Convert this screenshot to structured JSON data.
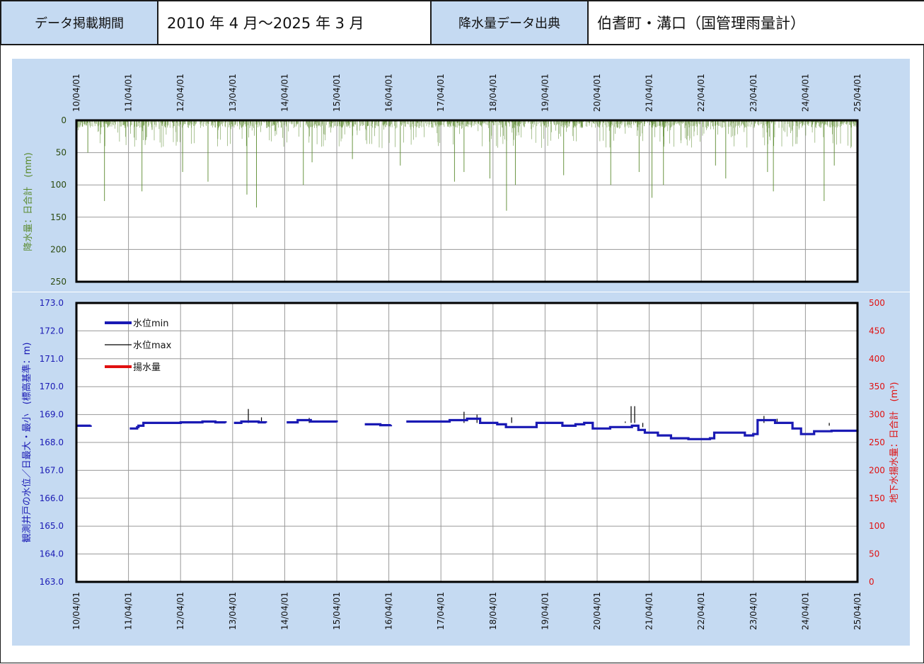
{
  "header": {
    "period_label": "データ掲載期間",
    "period_value": "2010 年 4 月～2025 年 3 月",
    "source_label": "降水量データ出典",
    "source_value": "伯耆町・溝口（国管理雨量計）"
  },
  "colors": {
    "panel_bg": "#c5daf2",
    "header_accent": "#1f4fd1",
    "rain": "#5a8a2e",
    "level_min": "#1a1ab4",
    "level_max": "#000000",
    "pumping": "#e01010"
  },
  "chart_data": [
    {
      "type": "bar",
      "name": "precipitation",
      "ylabel": "降水量：日合計　(mm)",
      "ylim": [
        0,
        250
      ],
      "y_inverted": true,
      "yticks": [
        "0",
        "50",
        "100",
        "150",
        "200",
        "250"
      ],
      "x_range": [
        "2010-04-01",
        "2025-04-01"
      ],
      "x_tick_labels": [
        "10/04/01",
        "11/04/01",
        "12/04/01",
        "13/04/01",
        "14/04/01",
        "15/04/01",
        "16/04/01",
        "17/04/01",
        "18/04/01",
        "19/04/01",
        "20/04/01",
        "21/04/01",
        "22/04/01",
        "23/04/01",
        "24/04/01",
        "25/04/01"
      ],
      "grid": true,
      "notable_peaks": [
        {
          "x": "2010-06-20",
          "y": 50
        },
        {
          "x": "2010-10-15",
          "y": 125
        },
        {
          "x": "2011-07-05",
          "y": 110
        },
        {
          "x": "2012-04-15",
          "y": 80
        },
        {
          "x": "2012-10-10",
          "y": 95
        },
        {
          "x": "2013-07-10",
          "y": 115
        },
        {
          "x": "2013-09-15",
          "y": 135
        },
        {
          "x": "2014-08-10",
          "y": 100
        },
        {
          "x": "2014-10-10",
          "y": 65
        },
        {
          "x": "2015-07-20",
          "y": 60
        },
        {
          "x": "2016-06-20",
          "y": 70
        },
        {
          "x": "2017-07-05",
          "y": 95
        },
        {
          "x": "2017-09-10",
          "y": 80
        },
        {
          "x": "2018-03-10",
          "y": 90
        },
        {
          "x": "2018-07-05",
          "y": 140
        },
        {
          "x": "2018-09-05",
          "y": 100
        },
        {
          "x": "2019-08-10",
          "y": 85
        },
        {
          "x": "2020-07-05",
          "y": 100
        },
        {
          "x": "2021-01-20",
          "y": 80
        },
        {
          "x": "2021-04-20",
          "y": 120
        },
        {
          "x": "2021-07-10",
          "y": 100
        },
        {
          "x": "2022-07-10",
          "y": 70
        },
        {
          "x": "2022-09-20",
          "y": 90
        },
        {
          "x": "2023-07-10",
          "y": 80
        },
        {
          "x": "2023-08-20",
          "y": 110
        },
        {
          "x": "2024-08-10",
          "y": 125
        },
        {
          "x": "2024-10-20",
          "y": 70
        }
      ]
    },
    {
      "type": "line",
      "name": "groundwater",
      "ylabel": "観測井戸の水位／日最大・最小　(標高基準：m)",
      "ylim": [
        163.0,
        173.0
      ],
      "yticks": [
        "163.0",
        "164.0",
        "165.0",
        "166.0",
        "167.0",
        "168.0",
        "169.0",
        "170.0",
        "171.0",
        "172.0",
        "173.0"
      ],
      "y2label": "地下水揚水量：日合計　(m³)",
      "y2lim": [
        0,
        500
      ],
      "y2ticks": [
        "0",
        "50",
        "100",
        "150",
        "200",
        "250",
        "300",
        "350",
        "400",
        "450",
        "500"
      ],
      "x_range": [
        "2010-04-01",
        "2025-04-01"
      ],
      "x_tick_labels": [
        "10/04/01",
        "11/04/01",
        "12/04/01",
        "13/04/01",
        "14/04/01",
        "15/04/01",
        "16/04/01",
        "17/04/01",
        "18/04/01",
        "19/04/01",
        "20/04/01",
        "21/04/01",
        "22/04/01",
        "23/04/01",
        "24/04/01",
        "25/04/01"
      ],
      "grid": true,
      "legend_position": "top-left",
      "legend": [
        "水位min",
        "水位max",
        "揚水量"
      ],
      "series": [
        {
          "name": "水位min",
          "segments": [
            [
              [
                "2010-04-01",
                168.6
              ],
              [
                "2010-05-15",
                168.6
              ],
              [
                "2010-07-10",
                168.62
              ]
            ],
            [
              [
                "2011-04-10",
                168.5
              ],
              [
                "2011-06-01",
                168.55
              ],
              [
                "2011-06-10",
                168.6
              ],
              [
                "2011-07-15",
                168.7
              ],
              [
                "2012-04-01",
                168.72
              ],
              [
                "2012-09-01",
                168.75
              ],
              [
                "2012-12-01",
                168.72
              ],
              [
                "2013-02-10",
                168.7
              ]
            ],
            [
              [
                "2013-04-10",
                168.7
              ],
              [
                "2013-06-01",
                168.75
              ],
              [
                "2013-10-01",
                168.72
              ],
              [
                "2013-11-20",
                168.7
              ]
            ],
            [
              [
                "2014-04-15",
                168.72
              ],
              [
                "2014-07-01",
                168.8
              ],
              [
                "2014-10-01",
                168.75
              ],
              [
                "2015-04-01",
                168.72
              ]
            ],
            [
              [
                "2015-10-15",
                168.65
              ],
              [
                "2016-02-01",
                168.62
              ],
              [
                "2016-04-15",
                168.63
              ]
            ],
            [
              [
                "2016-08-01",
                168.75
              ],
              [
                "2017-01-01",
                168.75
              ],
              [
                "2017-06-01",
                168.8
              ],
              [
                "2017-10-01",
                168.85
              ],
              [
                "2018-01-01",
                168.7
              ],
              [
                "2018-05-01",
                168.65
              ],
              [
                "2018-07-01",
                168.55
              ],
              [
                "2018-12-01",
                168.55
              ],
              [
                "2019-02-01",
                168.7
              ],
              [
                "2019-08-01",
                168.6
              ],
              [
                "2019-11-01",
                168.65
              ],
              [
                "2020-01-01",
                168.7
              ],
              [
                "2020-03-01",
                168.5
              ],
              [
                "2020-07-01",
                168.55
              ],
              [
                "2020-12-01",
                168.6
              ],
              [
                "2021-01-15",
                168.45
              ],
              [
                "2021-03-01",
                168.35
              ],
              [
                "2021-06-01",
                168.25
              ],
              [
                "2021-09-01",
                168.15
              ],
              [
                "2022-01-01",
                168.12
              ],
              [
                "2022-06-01",
                168.15
              ],
              [
                "2022-07-01",
                168.35
              ],
              [
                "2022-12-01",
                168.35
              ],
              [
                "2023-02-01",
                168.25
              ],
              [
                "2023-04-01",
                168.3
              ],
              [
                "2023-05-01",
                168.8
              ],
              [
                "2023-09-01",
                168.7
              ],
              [
                "2024-01-01",
                168.5
              ],
              [
                "2024-03-01",
                168.3
              ],
              [
                "2024-06-01",
                168.4
              ],
              [
                "2024-10-01",
                168.42
              ],
              [
                "2025-04-01",
                168.45
              ]
            ]
          ]
        },
        {
          "name": "水位max",
          "spikes": [
            {
              "x": "2013-07-20",
              "y": 169.2
            },
            {
              "x": "2013-10-20",
              "y": 168.9
            },
            {
              "x": "2014-09-20",
              "y": 168.88
            },
            {
              "x": "2017-09-10",
              "y": 169.1
            },
            {
              "x": "2017-12-10",
              "y": 169.0
            },
            {
              "x": "2018-08-10",
              "y": 168.9
            },
            {
              "x": "2020-10-15",
              "y": 168.75
            },
            {
              "x": "2020-11-25",
              "y": 169.3
            },
            {
              "x": "2020-12-20",
              "y": 169.3
            },
            {
              "x": "2021-02-15",
              "y": 168.55
            },
            {
              "x": "2023-06-15",
              "y": 168.95
            },
            {
              "x": "2023-09-15",
              "y": 168.85
            },
            {
              "x": "2024-09-15",
              "y": 168.6
            }
          ]
        },
        {
          "name": "揚水量",
          "values": []
        }
      ]
    }
  ]
}
